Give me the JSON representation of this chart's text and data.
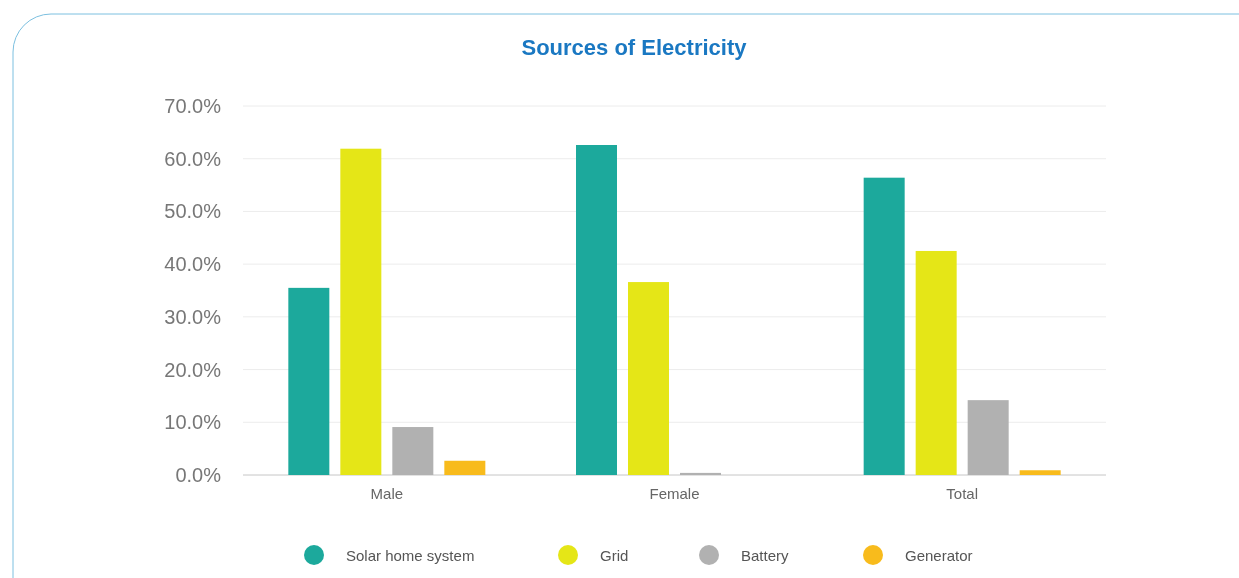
{
  "chart_data": {
    "type": "bar",
    "title": "Sources of Electricity",
    "categories": [
      "Male",
      "Female",
      "Total"
    ],
    "series": [
      {
        "name": "Solar home system",
        "color": "#1ca99c",
        "values": [
          35.5,
          62.6,
          56.4
        ]
      },
      {
        "name": "Grid",
        "color": "#e5e617",
        "values": [
          61.9,
          36.6,
          42.5
        ]
      },
      {
        "name": "Battery",
        "color": "#b1b1b1",
        "values": [
          9.1,
          0.4,
          14.2
        ]
      },
      {
        "name": "Generator",
        "color": "#f8bb1c",
        "values": [
          2.7,
          0,
          0.9
        ]
      }
    ],
    "ylim": [
      0,
      70
    ],
    "yticks": [
      {
        "value": 0,
        "label": "0.0%"
      },
      {
        "value": 10,
        "label": "10.0%"
      },
      {
        "value": 20,
        "label": "20.0%"
      },
      {
        "value": 30,
        "label": "30.0%"
      },
      {
        "value": 40,
        "label": "40.0%"
      },
      {
        "value": 50,
        "label": "50.0%"
      },
      {
        "value": 60,
        "label": "60.0%"
      },
      {
        "value": 70,
        "label": "70.0%"
      }
    ],
    "grid": "y",
    "legend": "bottom"
  }
}
